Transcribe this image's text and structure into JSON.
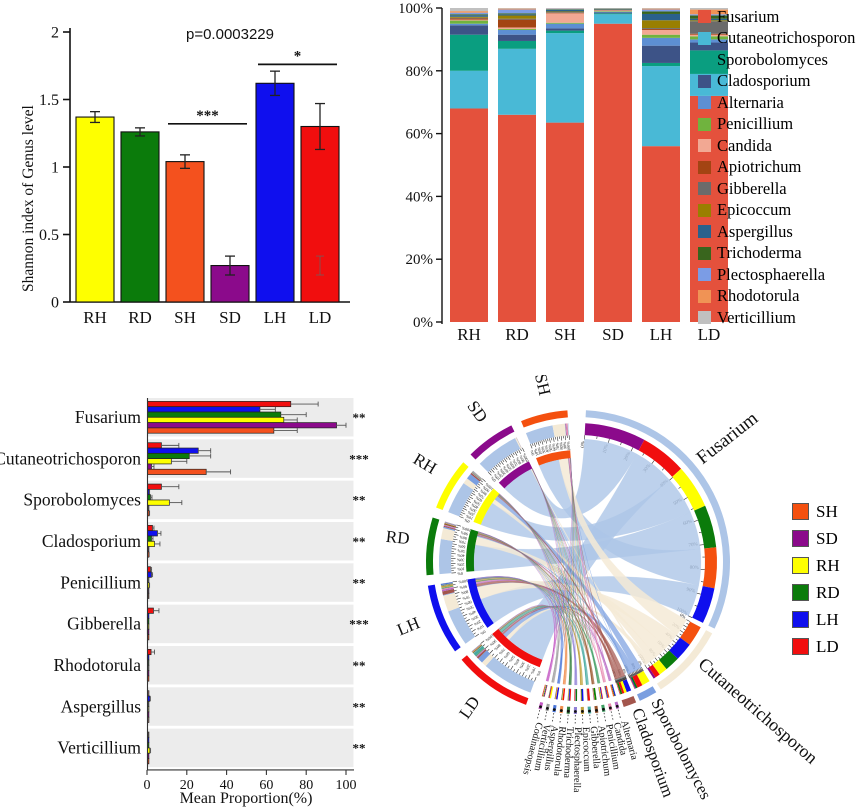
{
  "panel_a": {
    "p_value_text": "p=0.0003229",
    "ylabel": "Shannon index of Genus level"
  },
  "panel_c": {
    "xlabel": "Mean Proportion(%)"
  },
  "chart_data": [
    {
      "id": "shannon",
      "type": "bar",
      "title": "p=0.0003229",
      "ylabel": "Shannon index of Genus level",
      "categories": [
        "RH",
        "RD",
        "SH",
        "SD",
        "LH",
        "LD"
      ],
      "values": [
        1.37,
        1.26,
        1.04,
        0.27,
        1.62,
        1.3
      ],
      "errors": [
        0.04,
        0.03,
        0.05,
        0.07,
        0.09,
        0.17
      ],
      "bar_colors": [
        "#feff00",
        "#0b7b0b",
        "#f4511e",
        "#8b0a8b",
        "#0f0fee",
        "#f10e0e"
      ],
      "ylim": [
        0,
        2
      ],
      "yticks": [
        0,
        0.5,
        1,
        1.5,
        2
      ],
      "grid": false,
      "significance": [
        {
          "from": "SH",
          "to": "SD",
          "label": "***",
          "y": 1.32
        },
        {
          "from": "LH",
          "to": "LD",
          "label": "*",
          "y": 1.76
        }
      ],
      "ghost_error": {
        "category": "LD",
        "value": 0.27,
        "error": 0.07
      }
    },
    {
      "id": "composition",
      "type": "stacked-bar-percent",
      "categories": [
        "RH",
        "RD",
        "SH",
        "SD",
        "LH",
        "LD"
      ],
      "yticks": [
        "0%",
        "20%",
        "40%",
        "60%",
        "80%",
        "100%"
      ],
      "legend_position": "right",
      "series": [
        {
          "name": "Fusarium",
          "color": "#e4513c",
          "values": [
            68,
            66,
            63.5,
            95,
            56,
            72
          ]
        },
        {
          "name": "Cutaneotrichosporon",
          "color": "#49b9d6",
          "values": [
            12,
            21,
            28.5,
            3,
            25.5,
            7
          ]
        },
        {
          "name": "Sporobolomyces",
          "color": "#0a9e80",
          "values": [
            11.5,
            2.5,
            0.8,
            0.3,
            1.0,
            7.5
          ]
        },
        {
          "name": "Cladosporium",
          "color": "#3d5387",
          "values": [
            3,
            2,
            0.7,
            0.3,
            5.5,
            2.5
          ]
        },
        {
          "name": "Alternaria",
          "color": "#5d8fd3",
          "values": [
            0.5,
            1.5,
            1.5,
            0.2,
            2.5,
            1.0
          ]
        },
        {
          "name": "Penicillium",
          "color": "#70b33e",
          "values": [
            1.0,
            0.3,
            0.3,
            0.2,
            1.0,
            1.0
          ]
        },
        {
          "name": "Candida",
          "color": "#f2a893",
          "values": [
            0.3,
            0.5,
            3.0,
            0.2,
            1.5,
            0.5
          ]
        },
        {
          "name": "Apiotrichum",
          "color": "#a34413",
          "values": [
            0.4,
            2.5,
            0.2,
            0.1,
            0.3,
            0.3
          ]
        },
        {
          "name": "Gibberella",
          "color": "#6b6b6b",
          "values": [
            0.2,
            0.3,
            0.2,
            0.1,
            0.3,
            4.0
          ]
        },
        {
          "name": "Epicoccum",
          "color": "#997f00",
          "values": [
            0.3,
            1.0,
            0.2,
            0.1,
            2.5,
            0.3
          ]
        },
        {
          "name": "Aspergillus",
          "color": "#2a618c",
          "values": [
            0.5,
            0.4,
            0.5,
            0.2,
            2.0,
            0.5
          ]
        },
        {
          "name": "Trichoderma",
          "color": "#39651d",
          "values": [
            0.3,
            0.3,
            0.2,
            0.1,
            0.8,
            1.0
          ]
        },
        {
          "name": "Plectosphaerella",
          "color": "#7b9ce5",
          "values": [
            0.5,
            1.2,
            0.2,
            0.1,
            0.6,
            0.4
          ]
        },
        {
          "name": "Rhodotorula",
          "color": "#f09355",
          "values": [
            0.5,
            0.3,
            0.1,
            0.05,
            0.3,
            1.5
          ]
        },
        {
          "name": "Verticillium",
          "color": "#c0c0c0",
          "values": [
            1.0,
            0.2,
            0.1,
            0.05,
            0.2,
            0.5
          ]
        }
      ]
    },
    {
      "id": "mean-proportion",
      "type": "grouped-bar-horizontal",
      "xlabel": "Mean Proportion(%)",
      "xticks": [
        0,
        20,
        40,
        60,
        80,
        100
      ],
      "xlim": [
        0,
        100
      ],
      "group_order": [
        "LD",
        "LH",
        "RD",
        "RH",
        "SD",
        "SH"
      ],
      "group_colors": [
        "#f10e0e",
        "#0f0fee",
        "#0b7b0b",
        "#feff00",
        "#8b0a8b",
        "#f4511e"
      ],
      "rows": [
        {
          "genus": "Fusarium",
          "sig": "**",
          "values": [
            72,
            56.5,
            67,
            68.5,
            95,
            63.5
          ],
          "errors": [
            14,
            8,
            13,
            7,
            5,
            12
          ]
        },
        {
          "genus": "Cutaneotrichosporon",
          "sig": "***",
          "values": [
            7,
            25.5,
            21,
            12,
            2,
            29.5
          ],
          "errors": [
            9,
            6.5,
            11,
            8,
            1.5,
            12.5
          ]
        },
        {
          "genus": "Sporobolomyces",
          "sig": "**",
          "values": [
            7,
            0.8,
            1.5,
            11,
            0.3,
            0.8
          ],
          "errors": [
            9,
            0.5,
            1,
            6.5,
            0.3,
            0.5
          ]
        },
        {
          "genus": "Cladosporium",
          "sig": "**",
          "values": [
            2.5,
            5,
            2,
            3.5,
            0.3,
            0.7
          ],
          "errors": [
            1,
            2,
            1,
            3,
            0.2,
            0.4
          ]
        },
        {
          "genus": "Penicillium",
          "sig": "**",
          "values": [
            1.5,
            2,
            0.4,
            0.8,
            0.3,
            0.3
          ],
          "errors": [
            0.8,
            0.8,
            0.3,
            0.5,
            0.2,
            0.2
          ]
        },
        {
          "genus": "Gibberella",
          "sig": "***",
          "values": [
            3,
            0.1,
            0.1,
            0.2,
            0.1,
            0.2
          ],
          "errors": [
            3,
            0.1,
            0.1,
            0.2,
            0.1,
            0.1
          ]
        },
        {
          "genus": "Rhodotorula",
          "sig": "**",
          "values": [
            1.8,
            0.1,
            0.3,
            0.4,
            0.1,
            0.1
          ],
          "errors": [
            2,
            0.1,
            0.2,
            0.3,
            0.1,
            0.1
          ]
        },
        {
          "genus": "Aspergillus",
          "sig": "**",
          "values": [
            0.5,
            1.2,
            0.4,
            0.5,
            0.2,
            0.5
          ],
          "errors": [
            0.3,
            0.5,
            0.2,
            0.3,
            0.1,
            0.3
          ]
        },
        {
          "genus": "Verticillium",
          "sig": "**",
          "values": [
            0.4,
            0.2,
            0.2,
            1.2,
            0.1,
            0.1
          ],
          "errors": [
            0.2,
            0.1,
            0.1,
            0.6,
            0.1,
            0.1
          ]
        }
      ]
    },
    {
      "id": "chord",
      "type": "chord",
      "legend": [
        {
          "label": "SH",
          "color": "#f4500f"
        },
        {
          "label": "SD",
          "color": "#8b0a8b"
        },
        {
          "label": "RH",
          "color": "#feff00"
        },
        {
          "label": "RD",
          "color": "#0b7b0b"
        },
        {
          "label": "LH",
          "color": "#0f0fee"
        },
        {
          "label": "LD",
          "color": "#f10e0e"
        }
      ],
      "groups": [
        {
          "name": "LD",
          "color": "#f10e0e",
          "a0": 200,
          "a1": 230
        },
        {
          "name": "LH",
          "color": "#0f0fee",
          "a0": 234,
          "a1": 261
        },
        {
          "name": "RD",
          "color": "#0b7b0b",
          "a0": 265,
          "a1": 287
        },
        {
          "name": "RH",
          "color": "#feff00",
          "a0": 291,
          "a1": 311
        },
        {
          "name": "SD",
          "color": "#8b0a8b",
          "a0": 315,
          "a1": 334
        },
        {
          "name": "SH",
          "color": "#f4500f",
          "a0": 338,
          "a1": 356
        }
      ],
      "genera": [
        {
          "name": "Fusarium",
          "band": "#adc5e7",
          "a0": 3,
          "a1": 116,
          "label_size": 19,
          "label_angle": 52
        },
        {
          "name": "Cutaneotrichosporon",
          "band": "#f4ead6",
          "a0": 118,
          "a1": 147,
          "label_size": 18,
          "label_angle": 131
        },
        {
          "name": "Sporobolomyces",
          "band": "#7b9fe0",
          "a0": 149,
          "a1": 156,
          "label_size": 16.5,
          "label_angle": 152.5
        },
        {
          "name": "Cladosporium",
          "band": "#a3564d",
          "a0": 157.5,
          "a1": 162.5,
          "label_size": 16.5,
          "label_angle": 160
        },
        {
          "name": "Alternaria",
          "band": "#b76ac5",
          "a0": 164.2,
          "a1": 165.4,
          "label_size": 10
        },
        {
          "name": "Candida",
          "band": "#e88bb1",
          "a0": 166.9,
          "a1": 168.1,
          "label_size": 10
        },
        {
          "name": "Penicillium",
          "band": "#3f9e63",
          "a0": 169.6,
          "a1": 170.8,
          "label_size": 10
        },
        {
          "name": "Apiotrichum",
          "band": "#99552b",
          "a0": 172.3,
          "a1": 173.5,
          "label_size": 10
        },
        {
          "name": "Gibberella",
          "band": "#44aaa2",
          "a0": 175.0,
          "a1": 176.2,
          "label_size": 10
        },
        {
          "name": "Epicoccum",
          "band": "#c0a23c",
          "a0": 177.7,
          "a1": 178.9,
          "label_size": 10
        },
        {
          "name": "Plectosphaerella",
          "band": "#8f7fd6",
          "a0": 180.4,
          "a1": 181.6,
          "label_size": 10
        },
        {
          "name": "Trichoderma",
          "band": "#2f7d3a",
          "a0": 183.1,
          "a1": 184.3,
          "label_size": 10
        },
        {
          "name": "Rhodotorula",
          "band": "#ef8e4e",
          "a0": 185.8,
          "a1": 187.0,
          "label_size": 10
        },
        {
          "name": "Aspergillus",
          "band": "#4b76d9",
          "a0": 188.5,
          "a1": 189.7,
          "label_size": 10
        },
        {
          "name": "Verticillium",
          "band": "#9e9e9e",
          "a0": 191.2,
          "a1": 192.4,
          "label_size": 10
        },
        {
          "name": "Codinaeopsis",
          "band": "#c357c3",
          "a0": 193.9,
          "a1": 195.1,
          "label_size": 10
        }
      ],
      "extra_values": {
        "Codinaeopsis": [
          0.15,
          0.15,
          0.15,
          0.15,
          0.15,
          0.15
        ]
      }
    }
  ]
}
